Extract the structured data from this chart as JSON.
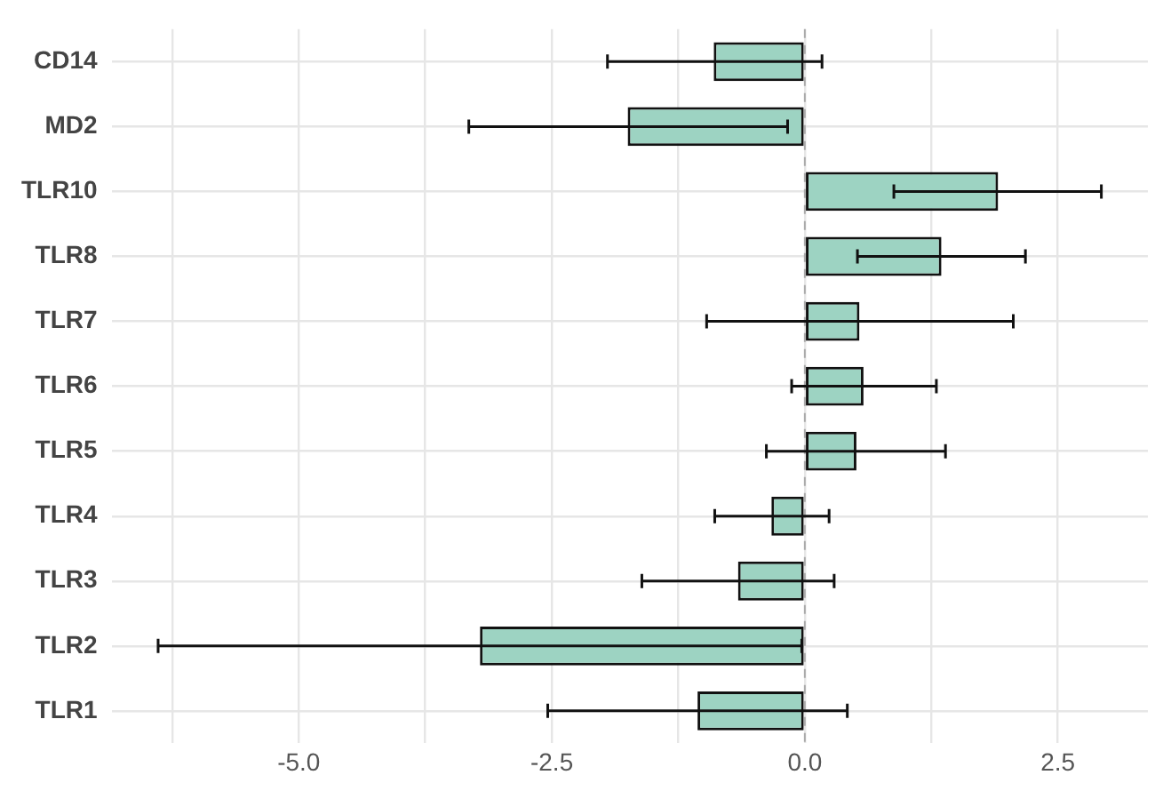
{
  "chart_data": {
    "type": "bar",
    "orientation": "horizontal",
    "categories": [
      "CD14",
      "MD2",
      "TLR10",
      "TLR8",
      "TLR7",
      "TLR6",
      "TLR5",
      "TLR4",
      "TLR3",
      "TLR2",
      "TLR1"
    ],
    "values": [
      -0.9,
      -1.75,
      1.91,
      1.35,
      0.54,
      0.58,
      0.51,
      -0.33,
      -0.66,
      -3.21,
      -1.06
    ],
    "errors": [
      [
        -1.95,
        0.17
      ],
      [
        -3.32,
        -0.17
      ],
      [
        0.88,
        2.93
      ],
      [
        0.52,
        2.18
      ],
      [
        -0.97,
        2.06
      ],
      [
        -0.13,
        1.3
      ],
      [
        -0.38,
        1.39
      ],
      [
        -0.89,
        0.24
      ],
      [
        -1.61,
        0.29
      ],
      [
        -6.39,
        -0.03
      ],
      [
        -2.54,
        0.42
      ]
    ],
    "color": "#9dd3c2",
    "xlim": [
      -6.85,
      3.39
    ],
    "xticks": [
      {
        "value": -6.25,
        "label": null
      },
      {
        "value": -5,
        "label": "-5.0"
      },
      {
        "value": -3.75,
        "label": null
      },
      {
        "value": -2.5,
        "label": "-2.5"
      },
      {
        "value": -1.25,
        "label": null
      },
      {
        "value": 0,
        "label": "0.0"
      },
      {
        "value": 1.25,
        "label": null
      },
      {
        "value": 2.5,
        "label": "2.5"
      }
    ],
    "ref_lines": [
      {
        "axis": "x",
        "value": 0,
        "color": "#aaaaaa",
        "line_style": "dashed"
      }
    ],
    "grid": true
  }
}
